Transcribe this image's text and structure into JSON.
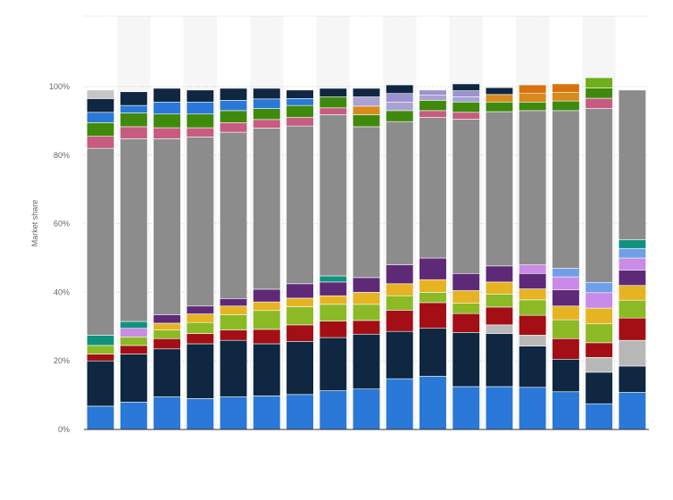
{
  "chart_data": {
    "type": "bar",
    "stacked": true,
    "title": "",
    "xlabel": "",
    "ylabel": "Market share",
    "ylim": [
      0,
      100
    ],
    "y_ticks": [
      "0%",
      "20%",
      "40%",
      "60%",
      "80%",
      "100%"
    ],
    "grid": "horizontal dotted",
    "legend": "none",
    "categories": [
      "",
      "",
      "",
      "",
      "",
      "",
      "",
      "",
      "",
      "",
      "",
      "",
      "",
      "",
      "",
      "",
      ""
    ],
    "series": [
      {
        "color": "#2a78d8",
        "values": [
          6.8,
          8,
          9.5,
          9,
          9.5,
          9.8,
          10.2,
          11.3,
          11.8,
          14.8,
          15.5,
          12.5,
          12.5,
          12.3,
          11,
          7.5,
          10.8
        ]
      },
      {
        "color": "#0f2740",
        "values": [
          13.2,
          14,
          14,
          16,
          16.5,
          15.2,
          15.5,
          15.5,
          16,
          13.8,
          14,
          15.8,
          15.5,
          12,
          9.5,
          9.2,
          7.7
        ]
      },
      {
        "color": "#b8b8b8",
        "values": [
          0,
          0,
          0,
          0,
          0,
          0,
          0,
          0,
          0,
          0,
          0,
          0,
          2.5,
          3.2,
          0,
          4.3,
          7.5
        ]
      },
      {
        "color": "#a30f14",
        "values": [
          2,
          2.5,
          3,
          3,
          3,
          4.2,
          4.8,
          4.8,
          4,
          6.2,
          7.5,
          5.5,
          5.2,
          5.8,
          6,
          4.3,
          6.5
        ]
      },
      {
        "color": "#8bba25",
        "values": [
          2.5,
          2.5,
          2.5,
          3.2,
          4.5,
          5.5,
          5.3,
          4.9,
          4.7,
          4.2,
          3,
          3,
          3.8,
          4.5,
          5.5,
          5.5,
          5.2
        ]
      },
      {
        "color": "#e6b323",
        "values": [
          0,
          0,
          2,
          2.5,
          2.5,
          2.5,
          2.5,
          2.5,
          3.5,
          3.5,
          3.7,
          3.7,
          3.5,
          3.2,
          4,
          4.6,
          4.3
        ]
      },
      {
        "color": "#5e2a78",
        "values": [
          0,
          0,
          2.5,
          2.3,
          2.2,
          3.7,
          4.2,
          4,
          4.3,
          5.5,
          6.3,
          5,
          4.7,
          4.5,
          4.7,
          0,
          4.5
        ]
      },
      {
        "color": "#c88be8",
        "values": [
          0,
          2.5,
          0,
          0,
          0,
          0,
          0,
          0,
          0,
          0,
          0,
          0,
          0,
          2.5,
          3.8,
          4.5,
          3.5
        ]
      },
      {
        "color": "#6f9fe8",
        "values": [
          0,
          0,
          0,
          0,
          0,
          0,
          0,
          0,
          0,
          0,
          0,
          0,
          0,
          0,
          2.5,
          3,
          2.8
        ]
      },
      {
        "color": "#11927e",
        "values": [
          3,
          2,
          0,
          0,
          0,
          0,
          0,
          1.8,
          0,
          0,
          0,
          0,
          0,
          0,
          0,
          0,
          2.5
        ]
      },
      {
        "color": "#8c8c8c",
        "values": [
          54.5,
          53.3,
          51.3,
          49.3,
          48.5,
          47,
          46,
          47,
          44,
          41.8,
          41,
          45,
          45,
          45,
          46,
          50.7,
          43.7
        ]
      },
      {
        "color": "#c75b80",
        "values": [
          3.5,
          3.5,
          3.2,
          2.7,
          2.8,
          2.5,
          2.5,
          2,
          0,
          0,
          2,
          2,
          0,
          0,
          0,
          3,
          0
        ]
      },
      {
        "color": "#3f8a0c",
        "values": [
          4,
          4,
          4,
          4,
          3.5,
          3.2,
          3.5,
          3.2,
          3.5,
          3.2,
          3,
          3,
          2.8,
          2.5,
          2.8,
          3,
          0
        ]
      },
      {
        "color": "#d98a1c",
        "values": [
          0,
          0,
          0,
          0,
          0,
          0,
          0,
          0,
          2.5,
          0,
          0,
          0,
          2.2,
          2.5,
          2.5,
          0,
          0
        ]
      },
      {
        "color": "#a9a2d3",
        "values": [
          0,
          0,
          0,
          0,
          0,
          0,
          0,
          0,
          2.7,
          2.5,
          1.5,
          1.5,
          0,
          0,
          0,
          0,
          0
        ]
      },
      {
        "color": "#9d92d0",
        "values": [
          0,
          0,
          0,
          0,
          0,
          0,
          0,
          0,
          0,
          2.5,
          1.5,
          1.8,
          0,
          0,
          0,
          0,
          0
        ]
      },
      {
        "color": "#2a78d8",
        "values": [
          3,
          2.2,
          3.5,
          3.5,
          3,
          2.8,
          2,
          0,
          0,
          0,
          0,
          0,
          0,
          0,
          0,
          0,
          0
        ]
      },
      {
        "color": "#0f2740",
        "values": [
          4,
          4,
          4,
          3.5,
          3.5,
          3.1,
          2.5,
          2.5,
          2.5,
          2.5,
          0,
          2,
          2,
          0,
          0,
          0,
          0
        ]
      },
      {
        "color": "#c6c6c6",
        "values": [
          2.5,
          0,
          0,
          0,
          0,
          0,
          0,
          0,
          0,
          0,
          0,
          0,
          0,
          0,
          0,
          0,
          0
        ]
      },
      {
        "color": "#d9720c",
        "values": [
          0,
          0,
          0,
          0,
          0,
          0,
          0,
          0,
          0,
          0,
          0,
          0,
          0,
          2.5,
          2.5,
          0,
          0
        ]
      },
      {
        "color": "#6fae1c",
        "values": [
          0,
          0,
          0,
          0,
          0,
          0,
          0,
          0,
          0,
          0,
          0,
          0,
          0,
          0,
          0,
          3,
          0
        ]
      }
    ]
  }
}
